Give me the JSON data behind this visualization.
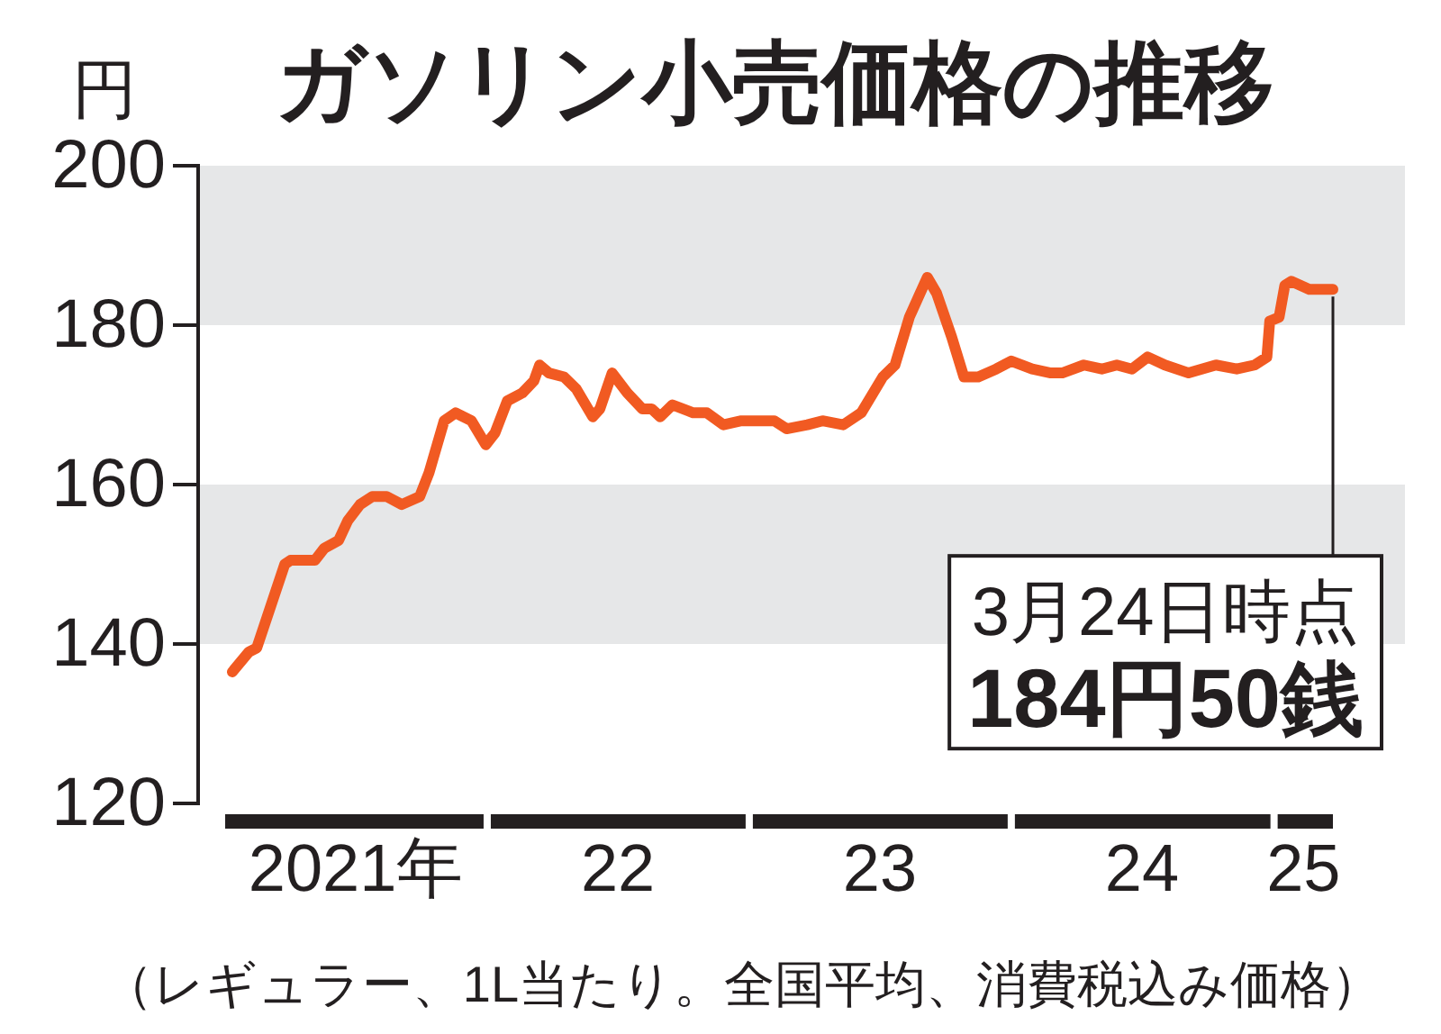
{
  "chart_data": {
    "type": "line",
    "title": "ガソリン小売価格の推移",
    "ylabel": "円",
    "x": [
      "2021-01-11",
      "2021-02-03",
      "2021-02-14",
      "2021-03-25",
      "2021-04-02",
      "2021-05-06",
      "2021-05-19",
      "2021-06-08",
      "2021-06-21",
      "2021-07-08",
      "2021-07-25",
      "2021-08-14",
      "2021-09-04",
      "2021-09-29",
      "2021-10-12",
      "2021-11-02",
      "2021-11-18",
      "2021-12-10",
      "2021-12-30",
      "2022-01-12",
      "2022-01-29",
      "2022-02-19",
      "2022-03-07",
      "2022-03-15",
      "2022-03-28",
      "2022-04-18",
      "2022-05-05",
      "2022-05-28",
      "2022-06-07",
      "2022-06-24",
      "2022-07-15",
      "2022-08-05",
      "2022-08-18",
      "2022-08-30",
      "2022-09-16",
      "2022-10-15",
      "2022-11-03",
      "2022-11-26",
      "2022-12-21",
      "2023-01-15",
      "2023-02-05",
      "2023-02-22",
      "2023-03-23",
      "2023-04-13",
      "2023-05-12",
      "2023-06-06",
      "2023-07-06",
      "2023-07-23",
      "2023-08-12",
      "2023-09-06",
      "2023-09-19",
      "2023-10-10",
      "2023-10-27",
      "2023-11-16",
      "2023-12-11",
      "2024-01-01",
      "2024-01-30",
      "2024-02-25",
      "2024-03-12",
      "2024-04-11",
      "2024-05-06",
      "2024-05-27",
      "2024-06-17",
      "2024-07-09",
      "2024-08-02",
      "2024-09-04",
      "2024-10-12",
      "2024-11-10",
      "2024-12-05",
      "2024-12-22",
      "2024-12-26",
      "2025-01-08",
      "2025-01-16",
      "2025-01-25",
      "2025-02-19",
      "2025-03-12",
      "2025-03-24"
    ],
    "values": [
      136.5,
      139,
      139.5,
      150,
      150.5,
      150.5,
      152,
      153,
      155.5,
      157.5,
      158.5,
      158.5,
      157.5,
      158.5,
      161.5,
      168,
      169,
      168,
      165,
      166.5,
      170.5,
      171.5,
      173,
      175,
      174,
      173.5,
      172,
      168.5,
      169.5,
      174,
      171.5,
      169.5,
      169.5,
      168.5,
      170,
      169,
      169,
      167.5,
      168,
      168,
      168,
      167,
      167.5,
      168,
      167.5,
      169,
      173.5,
      175,
      181,
      186,
      184,
      178.5,
      173.5,
      173.5,
      174.5,
      175.5,
      174.5,
      174,
      174,
      175,
      174.5,
      175,
      174.5,
      176,
      175,
      174,
      175,
      174.5,
      175,
      176,
      180.5,
      181,
      185,
      185.5,
      184.5,
      184.5,
      184.5
    ],
    "color": "#f15a22",
    "xlim": [
      "2021-01-01",
      "2025-03-24"
    ],
    "xticks": [
      {
        "value": "2021-07-02",
        "label": "2021年"
      },
      {
        "value": "2022-07-02",
        "label": "22"
      },
      {
        "value": "2023-07-02",
        "label": "23"
      },
      {
        "value": "2024-07-01",
        "label": "24"
      },
      {
        "value": "2025-02-11",
        "label": "25"
      }
    ],
    "ylim": [
      120,
      200
    ],
    "yticks": [
      120,
      140,
      160,
      180,
      200
    ],
    "bands": [
      {
        "axis": "y",
        "from": 140,
        "to": 160,
        "color": "#e6e7e8"
      },
      {
        "axis": "y",
        "from": 180,
        "to": 200,
        "color": "#e6e7e8"
      }
    ],
    "annotations": [
      {
        "text": "3月24日時点\n184円50銭",
        "x": "2025-03-24",
        "y": 184.5
      },
      "（レギュラー、1L当たり。全国平均、消費税込み価格）"
    ]
  }
}
